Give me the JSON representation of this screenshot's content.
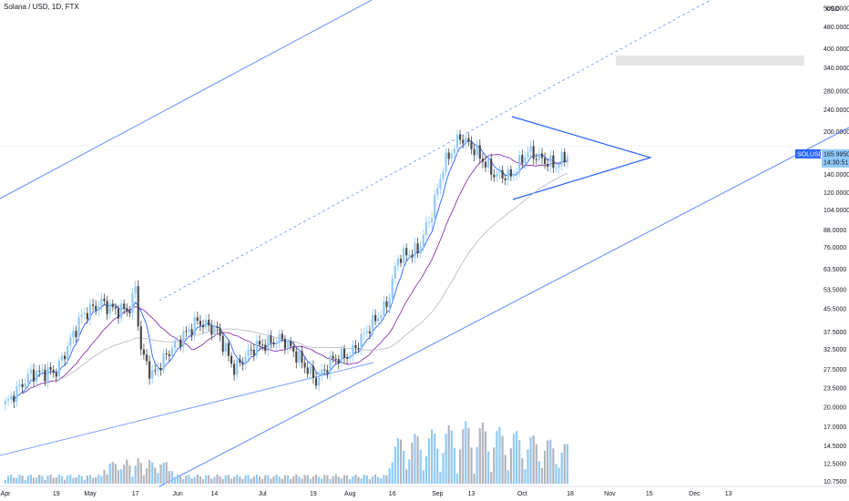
{
  "chart_data": {
    "type": "candlestick",
    "title": "Solana / USD, 1D, FTX",
    "currency": "USD",
    "y_scale": "log",
    "ylim": [
      9.5,
      600
    ],
    "y_ticks": [
      {
        "value": 560,
        "label": "560.0000"
      },
      {
        "value": 480,
        "label": "480.0000"
      },
      {
        "value": 400,
        "label": "400.0000"
      },
      {
        "value": 340,
        "label": "340.0000"
      },
      {
        "value": 280,
        "label": "280.0000"
      },
      {
        "value": 240,
        "label": "240.0000"
      },
      {
        "value": 200,
        "label": "200.0000"
      },
      {
        "value": 160,
        "label": "160.0000"
      },
      {
        "value": 140,
        "label": "140.0000"
      },
      {
        "value": 120,
        "label": "120.0000"
      },
      {
        "value": 104,
        "label": "104.0000"
      },
      {
        "value": 88,
        "label": "88.0000"
      },
      {
        "value": 76,
        "label": "76.0000"
      },
      {
        "value": 63.5,
        "label": "63.5000"
      },
      {
        "value": 53.5,
        "label": "53.5000"
      },
      {
        "value": 45.5,
        "label": "45.5000"
      },
      {
        "value": 37.5,
        "label": "37.5000"
      },
      {
        "value": 32.5,
        "label": "32.5000"
      },
      {
        "value": 27.5,
        "label": "27.5000"
      },
      {
        "value": 23.5,
        "label": "23.5000"
      },
      {
        "value": 20,
        "label": "20.0000"
      },
      {
        "value": 17,
        "label": "17.0000"
      },
      {
        "value": 14.5,
        "label": "14.5000"
      },
      {
        "value": 12.5,
        "label": "12.5000"
      },
      {
        "value": 10.75,
        "label": "10.7500"
      }
    ],
    "x_ticks": [
      {
        "date": "2021-04-01",
        "label": "Apr"
      },
      {
        "date": "2021-04-19",
        "label": "19"
      },
      {
        "date": "2021-05-01",
        "label": "May"
      },
      {
        "date": "2021-05-17",
        "label": "17"
      },
      {
        "date": "2021-06-01",
        "label": "Jun"
      },
      {
        "date": "2021-06-14",
        "label": "14"
      },
      {
        "date": "2021-07-01",
        "label": "Jul"
      },
      {
        "date": "2021-07-19",
        "label": "19"
      },
      {
        "date": "2021-08-01",
        "label": "Aug"
      },
      {
        "date": "2021-08-16",
        "label": "16"
      },
      {
        "date": "2021-09-01",
        "label": "Sep"
      },
      {
        "date": "2021-09-13",
        "label": "13"
      },
      {
        "date": "2021-10-01",
        "label": "Oct"
      },
      {
        "date": "2021-10-18",
        "label": "18"
      },
      {
        "date": "2021-11-01",
        "label": "Nov"
      },
      {
        "date": "2021-11-15",
        "label": "15"
      },
      {
        "date": "2021-12-01",
        "label": "Dec"
      },
      {
        "date": "2021-12-13",
        "label": "13"
      }
    ],
    "last_price": {
      "symbol": "SOLUSD",
      "value": 165.995,
      "label": "165.9950",
      "countdown": "14:30:51"
    },
    "series_colors": {
      "up": "#90caf9",
      "down": "#4a4a4a",
      "vol_up": "#90caf9",
      "vol_down": "#b2b5be"
    },
    "overlay_colors": {
      "ma_fast": "#2962ff",
      "ma_mid": "#7b1fa2",
      "ma_slow": "#b2b5be",
      "trend": "#2962ff"
    },
    "ohlcv_keypoints": [
      {
        "date": "2021-04-01",
        "close": 20.5
      },
      {
        "date": "2021-04-10",
        "close": 26.5
      },
      {
        "date": "2021-04-19",
        "close": 27
      },
      {
        "date": "2021-04-28",
        "close": 43
      },
      {
        "date": "2021-05-05",
        "close": 48
      },
      {
        "date": "2021-05-10",
        "close": 45
      },
      {
        "date": "2021-05-15",
        "close": 45.5
      },
      {
        "date": "2021-05-17",
        "close": 54
      },
      {
        "date": "2021-05-19",
        "close": 32
      },
      {
        "date": "2021-05-23",
        "close": 26
      },
      {
        "date": "2021-05-30",
        "close": 33
      },
      {
        "date": "2021-06-08",
        "close": 41
      },
      {
        "date": "2021-06-15",
        "close": 38
      },
      {
        "date": "2021-06-21",
        "close": 27.5
      },
      {
        "date": "2021-06-28",
        "close": 33
      },
      {
        "date": "2021-07-08",
        "close": 35.5
      },
      {
        "date": "2021-07-13",
        "close": 31
      },
      {
        "date": "2021-07-20",
        "close": 25
      },
      {
        "date": "2021-07-26",
        "close": 30
      },
      {
        "date": "2021-08-01",
        "close": 31
      },
      {
        "date": "2021-08-07",
        "close": 38
      },
      {
        "date": "2021-08-14",
        "close": 47
      },
      {
        "date": "2021-08-18",
        "close": 70
      },
      {
        "date": "2021-08-25",
        "close": 74
      },
      {
        "date": "2021-08-30",
        "close": 102
      },
      {
        "date": "2021-09-03",
        "close": 150
      },
      {
        "date": "2021-09-09",
        "close": 192
      },
      {
        "date": "2021-09-14",
        "close": 172
      },
      {
        "date": "2021-09-21",
        "close": 140
      },
      {
        "date": "2021-09-27",
        "close": 138
      },
      {
        "date": "2021-10-03",
        "close": 170
      },
      {
        "date": "2021-10-08",
        "close": 158
      },
      {
        "date": "2021-10-13",
        "close": 150
      },
      {
        "date": "2021-10-17",
        "close": 166
      }
    ]
  }
}
